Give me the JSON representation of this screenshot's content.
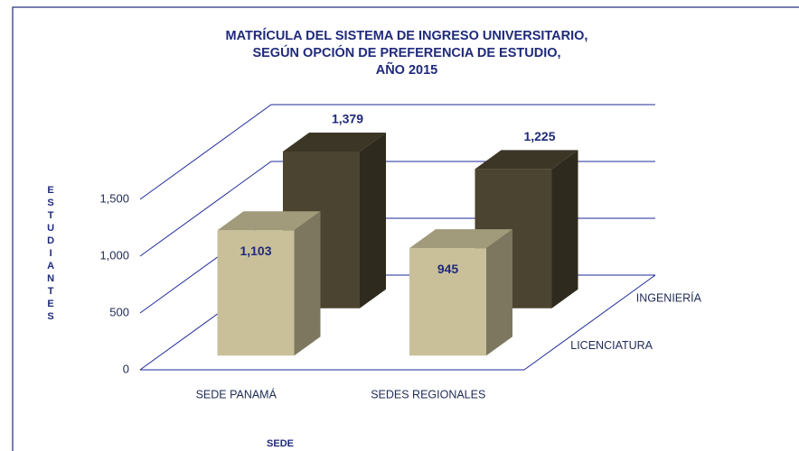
{
  "chart_data": {
    "type": "bar3d",
    "title": [
      "MATRÍCULA DEL SISTEMA DE INGRESO UNIVERSITARIO,",
      "SEGÚN OPCIÓN DE PREFERENCIA DE ESTUDIO,",
      "AÑO 2015"
    ],
    "x_label": "SEDE",
    "y_label": "ESTUDIANTES",
    "categories": [
      "SEDE PANAMÁ",
      "SEDES REGIONALES"
    ],
    "series": [
      {
        "name": "LICENCIATURA",
        "color": "#c9c09a",
        "values": [
          1103,
          945
        ],
        "value_labels": [
          "1,103",
          "945"
        ]
      },
      {
        "name": "INGENIERÍA",
        "color": "#4b4430",
        "values": [
          1379,
          1225
        ],
        "value_labels": [
          "1,379",
          "1,225"
        ]
      }
    ],
    "ylim": [
      0,
      1500
    ],
    "yticks": [
      0,
      {
        "value": 500,
        "label": "500"
      },
      {
        "value": 1000,
        "label": "1,000"
      },
      {
        "value": 1500,
        "label": "1,500"
      }
    ],
    "grid": true
  }
}
